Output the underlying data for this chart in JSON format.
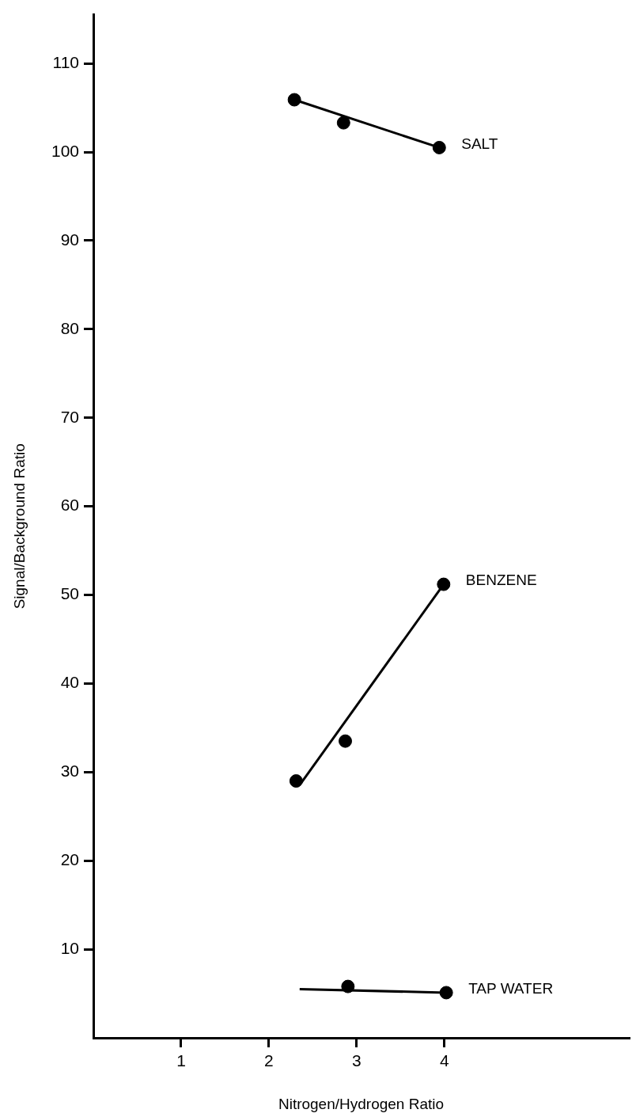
{
  "chart_data": {
    "type": "scatter",
    "xlabel": "Nitrogen/Hydrogen Ratio",
    "ylabel": "Signal/Background Ratio",
    "xlim": [
      0,
      6.1
    ],
    "ylim": [
      0,
      115.5
    ],
    "xticks": [
      1,
      2,
      3,
      4
    ],
    "yticks": [
      10,
      20,
      30,
      40,
      50,
      60,
      70,
      80,
      90,
      100,
      110
    ],
    "grid": false,
    "legend": false,
    "marker": "circle",
    "series": [
      {
        "name": "SALT",
        "color": "#000000",
        "x": [
          2.29,
          2.85,
          3.94
        ],
        "values": [
          105.9,
          103.3,
          100.5
        ]
      },
      {
        "type": "line",
        "color": "#000000",
        "marker": "none",
        "x": [
          2.29,
          3.94
        ],
        "values": [
          105.9,
          100.5
        ]
      },
      {
        "name": "BENZENE",
        "color": "#000000",
        "x": [
          2.31,
          2.87,
          3.99
        ],
        "values": [
          29,
          33.5,
          51.2
        ]
      },
      {
        "type": "line",
        "color": "#000000",
        "marker": "none",
        "x": [
          2.37,
          3.99
        ],
        "values": [
          28.8,
          51.2
        ]
      },
      {
        "name": "TAP WATER",
        "color": "#000000",
        "x": [
          2.9,
          4.02
        ],
        "values": [
          5.8,
          5.1
        ]
      },
      {
        "type": "line",
        "color": "#000000",
        "marker": "none",
        "x": [
          2.35,
          4.02
        ],
        "values": [
          5.5,
          5.1
        ]
      }
    ]
  }
}
